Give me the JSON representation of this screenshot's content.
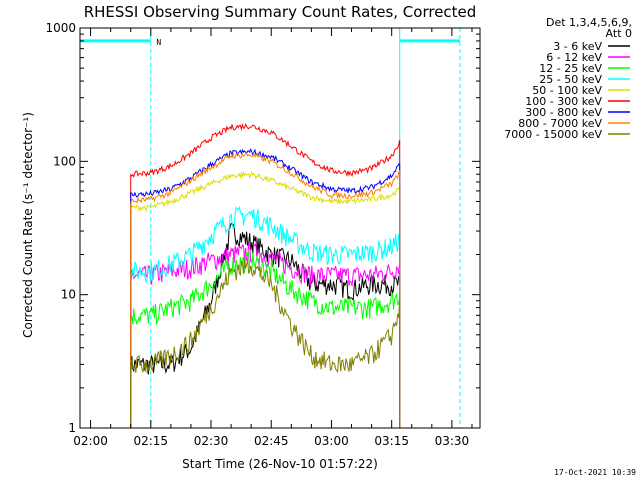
{
  "chart_data": {
    "type": "line",
    "title": "RHESSI Observing Summary Count Rates, Corrected",
    "xlabel": "Start Time (26-Nov-10 01:57:22)",
    "ylabel": "Corrected Count Rate (s⁻¹ detector⁻¹)",
    "yscale": "log",
    "ylim": [
      1,
      1000
    ],
    "xlim": [
      "01:57:22",
      "03:37:00"
    ],
    "x_ticks": [
      "02:00",
      "02:15",
      "02:30",
      "02:45",
      "03:00",
      "03:15",
      "03:30"
    ],
    "y_ticks": [
      "1",
      "10",
      "100",
      "1000"
    ],
    "legend_header": [
      "Det 1,3,4,5,6,9,",
      "Att 0"
    ],
    "legend_position": "right",
    "flag_marker": "N",
    "footer": "17-Oct-2021 10:39",
    "x": [
      "02:10",
      "02:15",
      "02:20",
      "02:25",
      "02:30",
      "02:35",
      "02:40",
      "02:45",
      "02:50",
      "02:55",
      "03:00",
      "03:05",
      "03:10",
      "03:15",
      "03:17"
    ],
    "series": [
      {
        "name": "3 - 6 keV",
        "color": "#000000",
        "values": [
          3,
          3,
          3,
          4,
          9,
          30,
          25,
          20,
          18,
          12,
          12,
          11,
          12,
          12,
          12
        ]
      },
      {
        "name": "6 - 12 keV",
        "color": "#ff00ff",
        "values": [
          14,
          14,
          15,
          16,
          18,
          20,
          21,
          19,
          16,
          14,
          14,
          14,
          14,
          15,
          17
        ]
      },
      {
        "name": "12 - 25 keV",
        "color": "#00ff00",
        "values": [
          7,
          7,
          8,
          9,
          12,
          17,
          18,
          15,
          11,
          9,
          8,
          8,
          8,
          9,
          10
        ]
      },
      {
        "name": "25 - 50 keV",
        "color": "#00ffff",
        "values": [
          15,
          15,
          17,
          20,
          28,
          38,
          40,
          33,
          26,
          21,
          20,
          20,
          21,
          23,
          26
        ]
      },
      {
        "name": "50 - 100 keV",
        "color": "#dddd00",
        "values": [
          45,
          45,
          50,
          58,
          68,
          78,
          80,
          72,
          62,
          54,
          50,
          50,
          52,
          56,
          62
        ]
      },
      {
        "name": "100 - 300 keV",
        "color": "#ff0000",
        "values": [
          80,
          82,
          92,
          115,
          150,
          180,
          185,
          165,
          130,
          100,
          85,
          82,
          88,
          110,
          140
        ]
      },
      {
        "name": "300 - 800 keV",
        "color": "#0000ff",
        "values": [
          56,
          57,
          62,
          75,
          95,
          115,
          118,
          108,
          88,
          70,
          62,
          60,
          64,
          78,
          95
        ]
      },
      {
        "name": "800 - 7000 keV",
        "color": "#ff8000",
        "values": [
          50,
          52,
          58,
          72,
          90,
          110,
          112,
          100,
          82,
          65,
          56,
          55,
          58,
          68,
          82
        ]
      },
      {
        "name": "7000 - 15000 keV",
        "color": "#808000",
        "values": [
          3,
          3,
          3.5,
          4.5,
          8,
          15,
          17,
          12,
          6,
          3.5,
          3,
          3,
          3.5,
          5,
          8
        ]
      }
    ],
    "attenuator_segments": [
      {
        "from": "01:57:22",
        "to": "02:15",
        "value": 800
      },
      {
        "from": "03:17",
        "to": "03:32",
        "value": 800
      }
    ],
    "event_lines": [
      "02:15",
      "03:32"
    ],
    "saa_lines": [
      "01:57:22",
      "03:17"
    ],
    "grid": false
  }
}
